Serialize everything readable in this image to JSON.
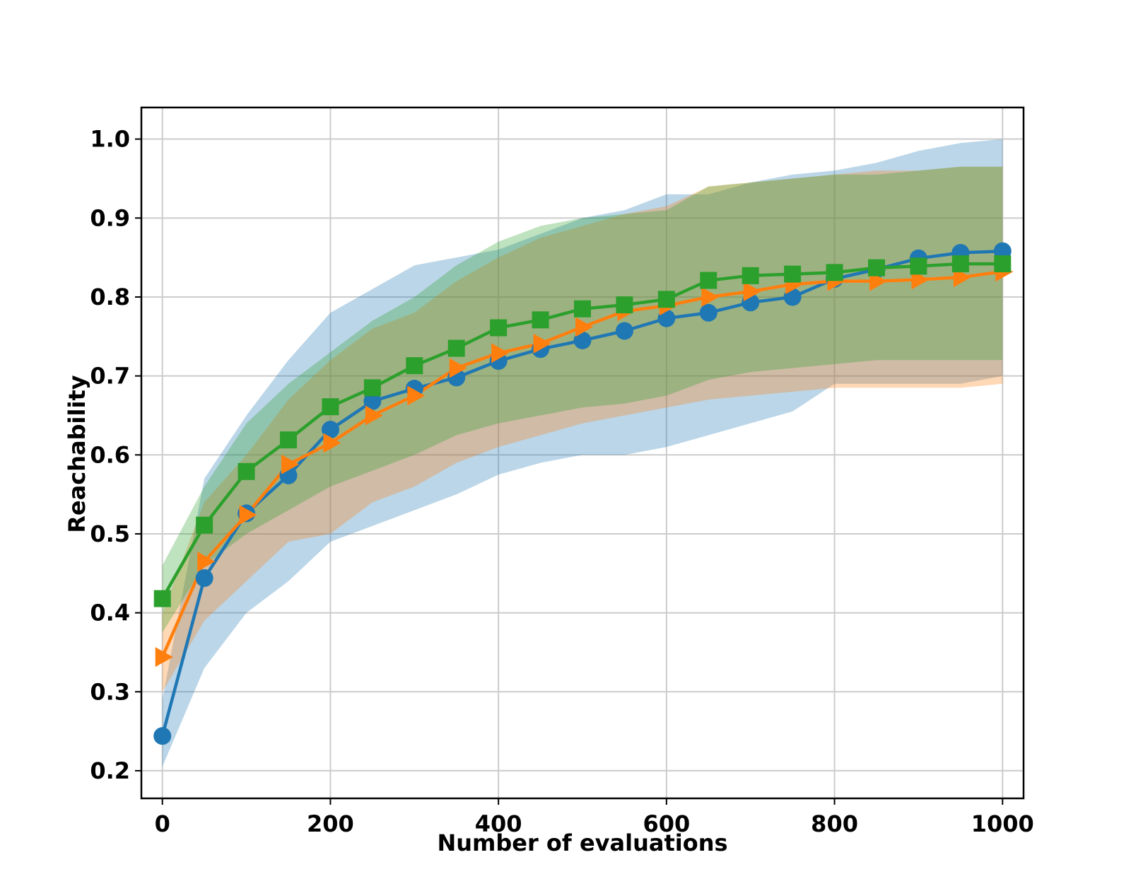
{
  "chart_data": {
    "type": "line",
    "title": "",
    "xlabel": "Number of evaluations",
    "ylabel": "Reachability",
    "xlim": [
      -25,
      1025
    ],
    "ylim": [
      0.165,
      1.04
    ],
    "xticks": [
      0,
      200,
      400,
      600,
      800,
      1000
    ],
    "yticks": [
      0.2,
      0.3,
      0.4,
      0.5,
      0.6,
      0.7,
      0.8,
      0.9,
      1.0
    ],
    "xtick_labels": [
      "0",
      "200",
      "400",
      "600",
      "800",
      "1000"
    ],
    "ytick_labels": [
      "0.2",
      "0.3",
      "0.4",
      "0.5",
      "0.6",
      "0.7",
      "0.8",
      "0.9",
      "1.0"
    ],
    "grid": true,
    "legend": "none",
    "x": [
      0,
      50,
      100,
      150,
      200,
      250,
      300,
      350,
      400,
      450,
      500,
      550,
      600,
      650,
      700,
      750,
      800,
      850,
      900,
      950,
      1000
    ],
    "series": [
      {
        "marker": "circle",
        "color": "#1f77b4",
        "values": [
          0.244,
          0.444,
          0.526,
          0.574,
          0.632,
          0.668,
          0.684,
          0.698,
          0.719,
          0.734,
          0.745,
          0.757,
          0.773,
          0.78,
          0.793,
          0.8,
          0.823,
          0.835,
          0.849,
          0.856,
          0.858
        ],
        "band_x": [
          0,
          50,
          100,
          150,
          200,
          250,
          300,
          350,
          400,
          450,
          500,
          550,
          600,
          650,
          700,
          750,
          800,
          850,
          900,
          950,
          1000
        ],
        "band_lower": [
          0.205,
          0.33,
          0.4,
          0.44,
          0.49,
          0.51,
          0.53,
          0.55,
          0.575,
          0.59,
          0.6,
          0.6,
          0.61,
          0.625,
          0.64,
          0.655,
          0.69,
          0.69,
          0.69,
          0.69,
          0.7
        ],
        "band_upper": [
          0.29,
          0.57,
          0.65,
          0.72,
          0.78,
          0.81,
          0.84,
          0.85,
          0.86,
          0.88,
          0.9,
          0.91,
          0.93,
          0.93,
          0.945,
          0.955,
          0.96,
          0.97,
          0.985,
          0.995,
          1.0
        ]
      },
      {
        "marker": "triangle-right",
        "color": "#ff7f0e",
        "values": [
          0.344,
          0.465,
          0.524,
          0.588,
          0.615,
          0.65,
          0.675,
          0.71,
          0.729,
          0.741,
          0.762,
          0.782,
          0.789,
          0.8,
          0.807,
          0.816,
          0.82,
          0.82,
          0.822,
          0.825,
          0.832
        ],
        "band_x": [
          0,
          50,
          100,
          150,
          200,
          250,
          300,
          350,
          400,
          450,
          500,
          550,
          600,
          650,
          700,
          750,
          800,
          850,
          900,
          950,
          1000
        ],
        "band_lower": [
          0.3,
          0.39,
          0.44,
          0.49,
          0.5,
          0.54,
          0.56,
          0.59,
          0.61,
          0.625,
          0.64,
          0.65,
          0.66,
          0.67,
          0.675,
          0.68,
          0.685,
          0.685,
          0.685,
          0.685,
          0.69
        ],
        "band_upper": [
          0.4,
          0.54,
          0.6,
          0.67,
          0.72,
          0.76,
          0.78,
          0.82,
          0.85,
          0.875,
          0.89,
          0.905,
          0.915,
          0.94,
          0.945,
          0.95,
          0.955,
          0.96,
          0.96,
          0.965,
          0.965
        ]
      },
      {
        "marker": "square",
        "color": "#2ca02c",
        "values": [
          0.418,
          0.511,
          0.579,
          0.619,
          0.661,
          0.685,
          0.713,
          0.735,
          0.761,
          0.771,
          0.785,
          0.79,
          0.797,
          0.821,
          0.827,
          0.829,
          0.831,
          0.837,
          0.839,
          0.842,
          0.842
        ],
        "band_x": [
          0,
          50,
          100,
          150,
          200,
          250,
          300,
          350,
          400,
          450,
          500,
          550,
          600,
          650,
          700,
          750,
          800,
          850,
          900,
          950,
          1000
        ],
        "band_lower": [
          0.375,
          0.46,
          0.5,
          0.53,
          0.56,
          0.58,
          0.6,
          0.625,
          0.64,
          0.65,
          0.66,
          0.665,
          0.675,
          0.695,
          0.705,
          0.71,
          0.715,
          0.72,
          0.72,
          0.72,
          0.72
        ],
        "band_upper": [
          0.46,
          0.56,
          0.64,
          0.69,
          0.73,
          0.77,
          0.8,
          0.84,
          0.87,
          0.89,
          0.9,
          0.905,
          0.91,
          0.94,
          0.945,
          0.95,
          0.955,
          0.955,
          0.96,
          0.965,
          0.965
        ]
      }
    ]
  }
}
